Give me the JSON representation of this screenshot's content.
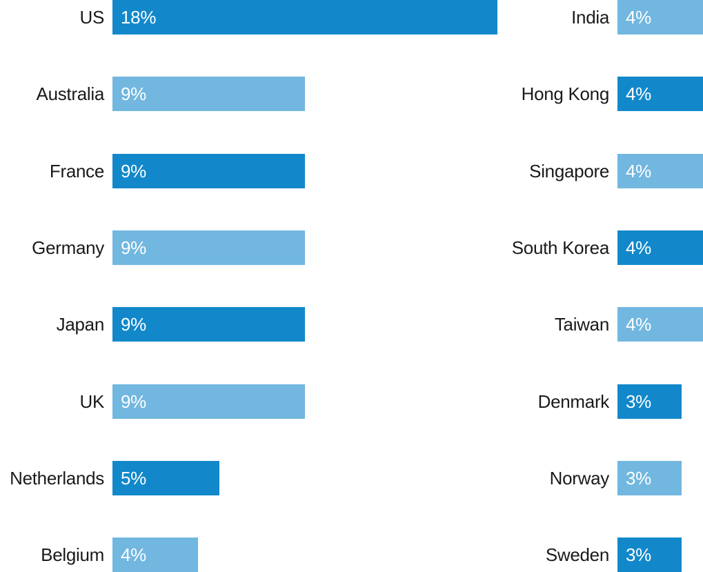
{
  "chart_data": {
    "type": "bar",
    "orientation": "horizontal",
    "units": "%",
    "colors": {
      "dark": "#1288cb",
      "light": "#71b7e0"
    },
    "panels": [
      {
        "categories": [
          "US",
          "Australia",
          "France",
          "Germany",
          "Japan",
          "UK",
          "Netherlands",
          "Belgium"
        ],
        "values": [
          18,
          9,
          9,
          9,
          9,
          9,
          5,
          4
        ],
        "value_labels": [
          "18%",
          "9%",
          "9%",
          "9%",
          "9%",
          "9%",
          "5%",
          "4%"
        ],
        "shades": [
          "dark",
          "light",
          "dark",
          "light",
          "dark",
          "light",
          "dark",
          "light"
        ]
      },
      {
        "categories": [
          "India",
          "Hong Kong",
          "Singapore",
          "South Korea",
          "Taiwan",
          "Denmark",
          "Norway",
          "Sweden"
        ],
        "values": [
          4,
          4,
          4,
          4,
          4,
          3,
          3,
          3
        ],
        "value_labels": [
          "4%",
          "4%",
          "4%",
          "4%",
          "4%",
          "3%",
          "3%",
          "3%"
        ],
        "shades": [
          "light",
          "dark",
          "light",
          "dark",
          "light",
          "dark",
          "light",
          "dark"
        ]
      }
    ]
  }
}
